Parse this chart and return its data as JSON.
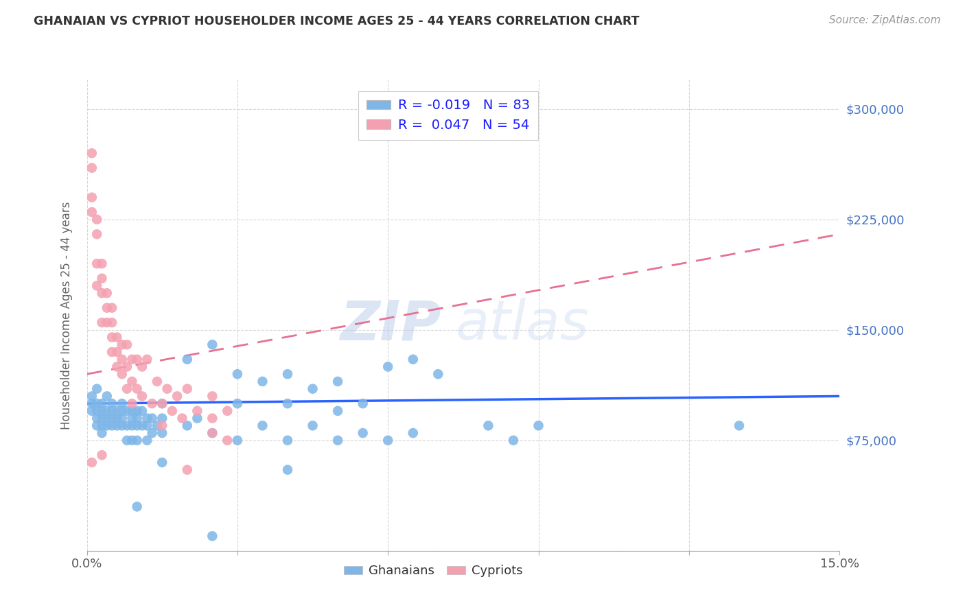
{
  "title": "GHANAIAN VS CYPRIOT HOUSEHOLDER INCOME AGES 25 - 44 YEARS CORRELATION CHART",
  "source": "Source: ZipAtlas.com",
  "ylabel": "Householder Income Ages 25 - 44 years",
  "x_min": 0.0,
  "x_max": 0.15,
  "y_min": 0,
  "y_max": 320000,
  "x_ticks": [
    0.0,
    0.03,
    0.06,
    0.09,
    0.12,
    0.15
  ],
  "y_ticks": [
    0,
    75000,
    150000,
    225000,
    300000
  ],
  "y_tick_labels": [
    "",
    "$75,000",
    "$150,000",
    "$225,000",
    "$300,000"
  ],
  "ghanaian_color": "#7EB6E8",
  "cypriot_color": "#F4A0B0",
  "ghanaian_line_color": "#2962FF",
  "cypriot_line_color": "#E87090",
  "watermark_zip": "ZIP",
  "watermark_atlas": "atlas",
  "legend_R_ghana": "-0.019",
  "legend_N_ghana": "83",
  "legend_R_cypriot": "0.047",
  "legend_N_cypriot": "54",
  "ghanaian_x": [
    0.001,
    0.001,
    0.001,
    0.002,
    0.002,
    0.002,
    0.002,
    0.002,
    0.003,
    0.003,
    0.003,
    0.003,
    0.003,
    0.004,
    0.004,
    0.004,
    0.004,
    0.005,
    0.005,
    0.005,
    0.005,
    0.006,
    0.006,
    0.006,
    0.007,
    0.007,
    0.007,
    0.007,
    0.008,
    0.008,
    0.008,
    0.009,
    0.009,
    0.009,
    0.009,
    0.01,
    0.01,
    0.01,
    0.01,
    0.011,
    0.011,
    0.012,
    0.012,
    0.012,
    0.013,
    0.013,
    0.014,
    0.015,
    0.015,
    0.015,
    0.02,
    0.02,
    0.022,
    0.025,
    0.025,
    0.03,
    0.03,
    0.03,
    0.035,
    0.035,
    0.04,
    0.04,
    0.04,
    0.045,
    0.045,
    0.05,
    0.05,
    0.05,
    0.055,
    0.055,
    0.06,
    0.06,
    0.065,
    0.065,
    0.07,
    0.08,
    0.085,
    0.09,
    0.13,
    0.04,
    0.025,
    0.015,
    0.01
  ],
  "ghanaian_y": [
    100000,
    95000,
    105000,
    100000,
    95000,
    90000,
    85000,
    110000,
    100000,
    95000,
    90000,
    85000,
    80000,
    95000,
    90000,
    85000,
    105000,
    95000,
    90000,
    85000,
    100000,
    95000,
    90000,
    85000,
    90000,
    95000,
    85000,
    100000,
    95000,
    85000,
    75000,
    95000,
    90000,
    85000,
    75000,
    95000,
    90000,
    85000,
    75000,
    95000,
    85000,
    90000,
    85000,
    75000,
    90000,
    80000,
    85000,
    100000,
    90000,
    80000,
    130000,
    85000,
    90000,
    140000,
    80000,
    120000,
    100000,
    75000,
    115000,
    85000,
    120000,
    100000,
    75000,
    110000,
    85000,
    115000,
    95000,
    75000,
    100000,
    80000,
    125000,
    75000,
    130000,
    80000,
    120000,
    85000,
    75000,
    85000,
    85000,
    55000,
    10000,
    60000,
    30000
  ],
  "cypriot_x": [
    0.001,
    0.001,
    0.001,
    0.001,
    0.002,
    0.002,
    0.002,
    0.002,
    0.003,
    0.003,
    0.003,
    0.003,
    0.004,
    0.004,
    0.004,
    0.005,
    0.005,
    0.005,
    0.005,
    0.006,
    0.006,
    0.006,
    0.007,
    0.007,
    0.007,
    0.008,
    0.008,
    0.008,
    0.009,
    0.009,
    0.009,
    0.01,
    0.01,
    0.011,
    0.011,
    0.012,
    0.013,
    0.014,
    0.015,
    0.015,
    0.016,
    0.017,
    0.018,
    0.019,
    0.02,
    0.022,
    0.025,
    0.025,
    0.025,
    0.028,
    0.028,
    0.001,
    0.003,
    0.02
  ],
  "cypriot_y": [
    270000,
    260000,
    240000,
    230000,
    225000,
    215000,
    195000,
    180000,
    195000,
    185000,
    175000,
    155000,
    175000,
    165000,
    155000,
    165000,
    155000,
    145000,
    135000,
    145000,
    135000,
    125000,
    140000,
    130000,
    120000,
    140000,
    125000,
    110000,
    130000,
    115000,
    100000,
    130000,
    110000,
    125000,
    105000,
    130000,
    100000,
    115000,
    100000,
    85000,
    110000,
    95000,
    105000,
    90000,
    110000,
    95000,
    105000,
    90000,
    80000,
    95000,
    75000,
    60000,
    65000,
    55000
  ]
}
